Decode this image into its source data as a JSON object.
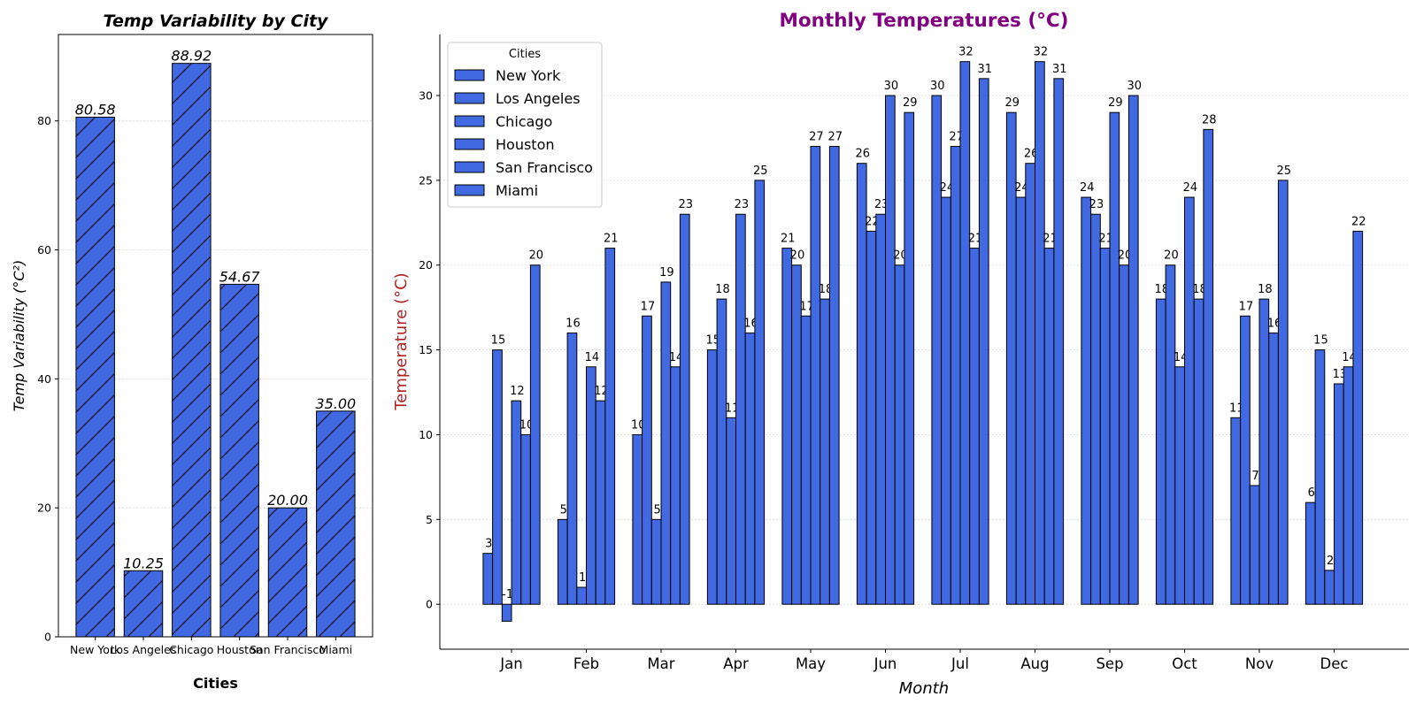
{
  "colors": {
    "bar_fill": "#4169e1",
    "bar_edge": "#000000",
    "grid": "#cccccc",
    "right_title": "#800080",
    "right_ylabel": "#b22222",
    "text": "#000000"
  },
  "chart_data": [
    {
      "type": "bar",
      "title": "Temp Variability by City",
      "xlabel": "Cities",
      "ylabel": "Temp Variability (°C²)",
      "categories": [
        "New York",
        "Los Angeles",
        "Chicago",
        "Houston",
        "San Francisco",
        "Miami"
      ],
      "values": [
        80.58,
        10.25,
        88.92,
        54.67,
        20.0,
        35.0
      ],
      "data_labels": [
        "80.58",
        "10.25",
        "88.92",
        "54.67",
        "20.00",
        "35.00"
      ],
      "ylim": [
        0,
        93.4
      ],
      "yticks": [
        0,
        20,
        40,
        60,
        80
      ],
      "hatch": "diagonal",
      "grid": "y-dotted"
    },
    {
      "type": "bar",
      "title": "Monthly Temperatures (°C)",
      "xlabel": "Month",
      "ylabel": "Temperature (°C)",
      "categories": [
        "Jan",
        "Feb",
        "Mar",
        "Apr",
        "May",
        "Jun",
        "Jul",
        "Aug",
        "Sep",
        "Oct",
        "Nov",
        "Dec"
      ],
      "series": [
        {
          "name": "New York",
          "values": [
            3,
            5,
            10,
            15,
            21,
            26,
            30,
            29,
            24,
            18,
            11,
            6
          ]
        },
        {
          "name": "Los Angeles",
          "values": [
            15,
            16,
            17,
            18,
            20,
            22,
            24,
            24,
            23,
            20,
            17,
            15
          ]
        },
        {
          "name": "Chicago",
          "values": [
            -1,
            1,
            5,
            11,
            17,
            23,
            27,
            26,
            21,
            14,
            7,
            2
          ]
        },
        {
          "name": "Houston",
          "values": [
            12,
            14,
            19,
            23,
            27,
            30,
            32,
            32,
            29,
            24,
            18,
            13
          ]
        },
        {
          "name": "San Francisco",
          "values": [
            10,
            12,
            14,
            16,
            18,
            20,
            21,
            21,
            20,
            18,
            16,
            14
          ]
        },
        {
          "name": "Miami",
          "values": [
            20,
            21,
            23,
            25,
            27,
            29,
            31,
            31,
            30,
            28,
            25,
            22
          ]
        }
      ],
      "ylim": [
        -2.65,
        33.6
      ],
      "yticks": [
        0,
        5,
        10,
        15,
        20,
        25,
        30
      ],
      "legend_title": "Cities",
      "legend_position": "top-left",
      "grid": "y-dotted"
    }
  ]
}
